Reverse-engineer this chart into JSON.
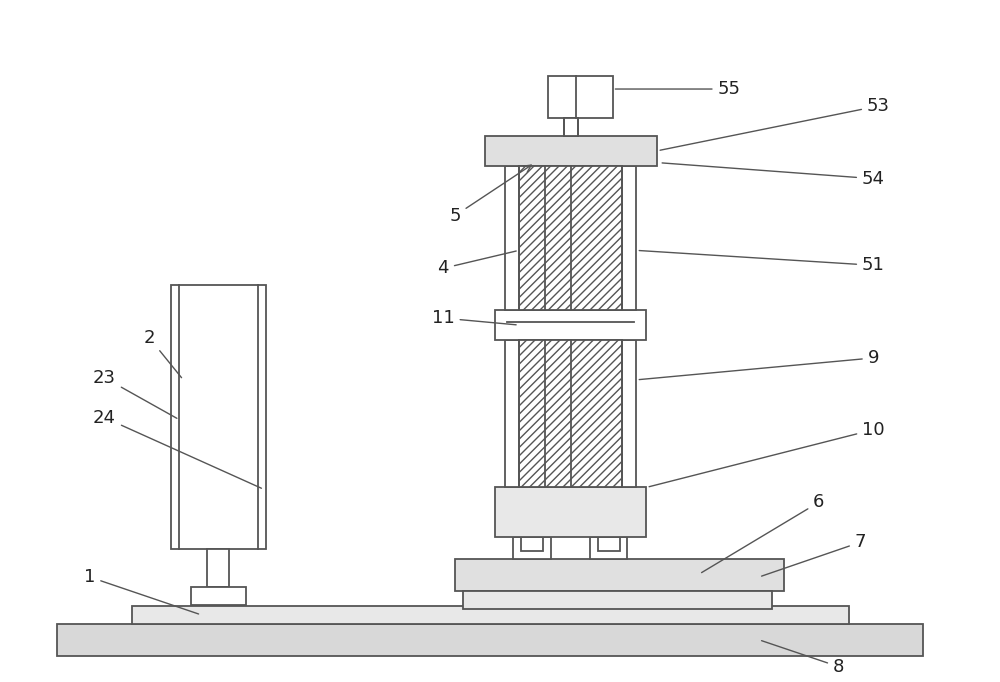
{
  "bg_color": "#ffffff",
  "line_color": "#555555",
  "label_color": "#222222",
  "figsize": [
    10.0,
    6.82
  ],
  "dpi": 100
}
